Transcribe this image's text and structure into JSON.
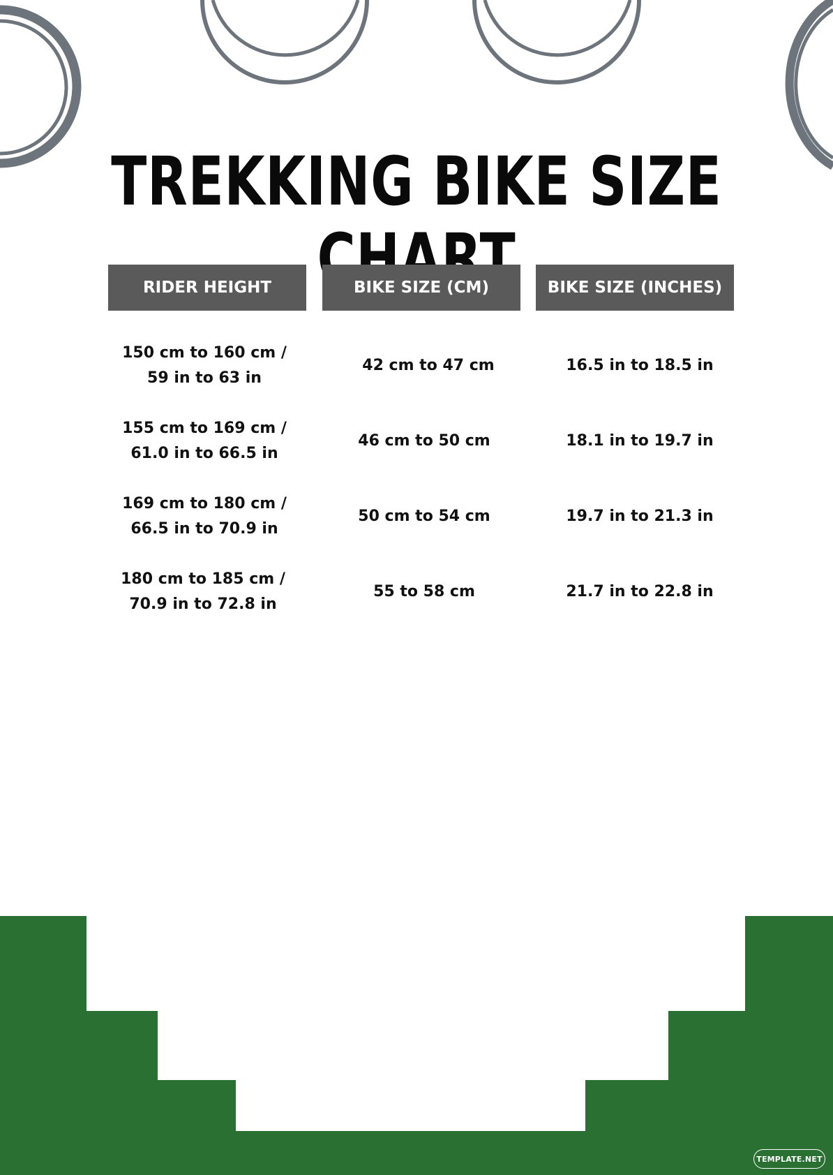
{
  "document": {
    "title": "TREKKING BIKE SIZE CHART"
  },
  "table": {
    "headers": [
      "RIDER HEIGHT",
      "BIKE SIZE (CM)",
      "BIKE SIZE (INCHES)"
    ],
    "rows": [
      {
        "rider_height_line1": "150 cm to 160 cm /",
        "rider_height_line2": "59 in to 63 in",
        "bike_size_cm": "42 cm to 47 cm",
        "bike_size_inches": "16.5 in to 18.5 in"
      },
      {
        "rider_height_line1": "155 cm to 169 cm /",
        "rider_height_line2": "61.0 in to 66.5 in",
        "bike_size_cm": "46 cm to 50 cm",
        "bike_size_inches": "18.1 in to 19.7 in"
      },
      {
        "rider_height_line1": "169 cm to 180 cm /",
        "rider_height_line2": "66.5 in to 70.9 in",
        "bike_size_cm": "50 cm to 54 cm",
        "bike_size_inches": "19.7 in to 21.3 in"
      },
      {
        "rider_height_line1": "180 cm to 185 cm /",
        "rider_height_line2": "70.9 in to 72.8 in",
        "bike_size_cm": "55 to 58 cm",
        "bike_size_inches": "21.7 in to 22.8 in"
      }
    ]
  },
  "footer": {
    "badge": "TEMPLATE.NET"
  },
  "colors": {
    "header_fill": "#5a5a5a",
    "ring_stroke": "#6d747b",
    "footer_green": "#2a7033"
  }
}
